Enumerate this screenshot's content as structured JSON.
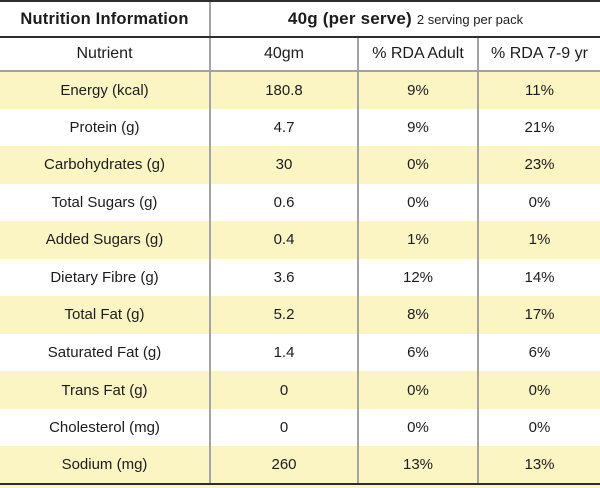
{
  "header": {
    "title": "Nutrition Information",
    "serve_size": "40g (per serve)",
    "serve_note": "2 serving per pack"
  },
  "columns": [
    "Nutrient",
    "40gm",
    "% RDA Adult",
    "% RDA 7-9 yr"
  ],
  "rows": [
    {
      "nutrient": "Energy (kcal)",
      "amount": "180.8",
      "rda_adult": "9%",
      "rda_7_9": "11%"
    },
    {
      "nutrient": "Protein (g)",
      "amount": "4.7",
      "rda_adult": "9%",
      "rda_7_9": "21%"
    },
    {
      "nutrient": "Carbohydrates (g)",
      "amount": "30",
      "rda_adult": "0%",
      "rda_7_9": "23%"
    },
    {
      "nutrient": "Total Sugars (g)",
      "amount": "0.6",
      "rda_adult": "0%",
      "rda_7_9": "0%"
    },
    {
      "nutrient": "Added Sugars (g)",
      "amount": "0.4",
      "rda_adult": "1%",
      "rda_7_9": "1%"
    },
    {
      "nutrient": "Dietary Fibre (g)",
      "amount": "3.6",
      "rda_adult": "12%",
      "rda_7_9": "14%"
    },
    {
      "nutrient": "Total Fat (g)",
      "amount": "5.2",
      "rda_adult": "8%",
      "rda_7_9": "17%"
    },
    {
      "nutrient": "Saturated Fat (g)",
      "amount": "1.4",
      "rda_adult": "6%",
      "rda_7_9": "6%"
    },
    {
      "nutrient": "Trans Fat (g)",
      "amount": "0",
      "rda_adult": "0%",
      "rda_7_9": "0%"
    },
    {
      "nutrient": "Cholesterol (mg)",
      "amount": "0",
      "rda_adult": "0%",
      "rda_7_9": "0%"
    },
    {
      "nutrient": "Sodium (mg)",
      "amount": "260",
      "rda_adult": "13%",
      "rda_7_9": "13%"
    }
  ],
  "colors": {
    "row_highlight": "#FAF5C3",
    "border_dark": "#2E2E2E",
    "border_gray": "#A3A3A3",
    "text": "#1C1C1C"
  }
}
